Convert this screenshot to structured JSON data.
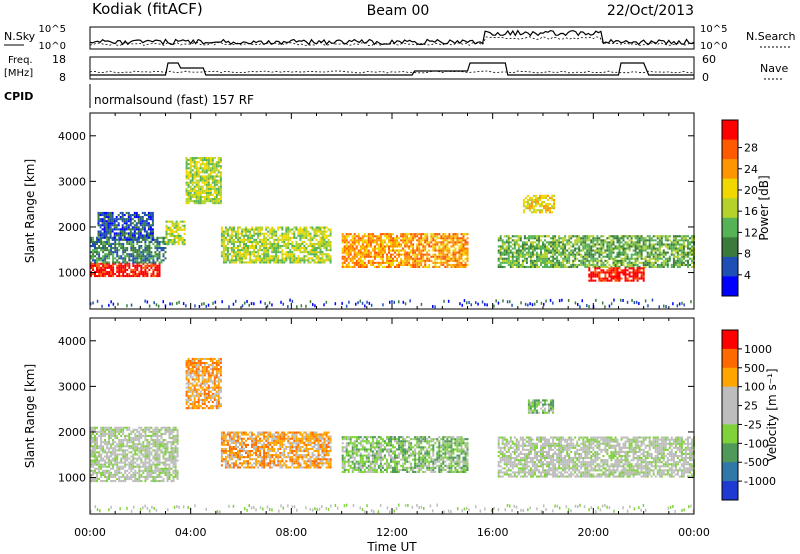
{
  "header": {
    "station": "Kodiak (fitACF)",
    "beam": "Beam 00",
    "date": "22/Oct/2013",
    "mode": "normalsound (fast) 157 RF"
  },
  "aux_panels": {
    "nsky_label": "N.Sky",
    "nsearch_label": "N.Search",
    "freq_label_1": "Freq.",
    "freq_label_2": "[MHz]",
    "nave_label": "Nave",
    "cpid_label": "CPID",
    "noise_ticks": [
      "10^5",
      "10^0"
    ],
    "freq_ticks": [
      "18",
      "8"
    ],
    "nave_ticks": [
      "60",
      "0"
    ]
  },
  "colors": {
    "power_scale": [
      "#0000ff",
      "#1f4fb4",
      "#3a7a3a",
      "#55b255",
      "#b4d22a",
      "#f0d800",
      "#ff9600",
      "#ff5a00",
      "#ff0000"
    ],
    "velocity_scale": [
      "#1f3ad2",
      "#2f78a8",
      "#4f9a5a",
      "#7fd23a",
      "#bdbdbd",
      "#bdbdbd",
      "#ffa500",
      "#ff6a00",
      "#ff0000"
    ]
  },
  "chart_data": [
    {
      "type": "heatmap",
      "name": "power",
      "xlabel": "Time UT",
      "ylabel": "Slant Range [km]",
      "xlim": [
        0,
        24
      ],
      "ylim": [
        200,
        4500
      ],
      "x_ticks": [
        "00:00",
        "04:00",
        "08:00",
        "12:00",
        "16:00",
        "20:00",
        "00:00"
      ],
      "y_ticks": [
        1000,
        2000,
        3000,
        4000
      ],
      "colorbar_label": "Power [dB]",
      "colorbar_ticks": [
        "4",
        "8",
        "12",
        "16",
        "20",
        "24",
        "28"
      ],
      "regions": [
        {
          "t0": 0.0,
          "t1": 2.8,
          "r0": 900,
          "r1": 1200,
          "level": 8
        },
        {
          "t0": 0.0,
          "t1": 3.0,
          "r0": 1200,
          "r1": 1750,
          "level": 2
        },
        {
          "t0": 0.3,
          "t1": 2.5,
          "r0": 1700,
          "r1": 2300,
          "level": 1
        },
        {
          "t0": 3.0,
          "t1": 3.8,
          "r0": 1600,
          "r1": 2100,
          "level": 4
        },
        {
          "t0": 3.8,
          "t1": 5.2,
          "r0": 2500,
          "r1": 3500,
          "level": 4
        },
        {
          "t0": 5.2,
          "t1": 9.6,
          "r0": 1200,
          "r1": 2000,
          "level": 4
        },
        {
          "t0": 10.0,
          "t1": 15.0,
          "r0": 1100,
          "r1": 1850,
          "level": 6
        },
        {
          "t0": 17.2,
          "t1": 18.4,
          "r0": 2300,
          "r1": 2700,
          "level": 5
        },
        {
          "t0": 16.2,
          "t1": 24.0,
          "r0": 1100,
          "r1": 1800,
          "level": 3
        },
        {
          "t0": 19.8,
          "t1": 22.0,
          "r0": 800,
          "r1": 1100,
          "level": 8
        }
      ]
    },
    {
      "type": "heatmap",
      "name": "velocity",
      "xlabel": "Time UT",
      "ylabel": "Slant Range [km]",
      "xlim": [
        0,
        24
      ],
      "ylim": [
        200,
        4500
      ],
      "x_ticks": [
        "00:00",
        "04:00",
        "08:00",
        "12:00",
        "16:00",
        "20:00",
        "00:00"
      ],
      "y_ticks": [
        1000,
        2000,
        3000,
        4000
      ],
      "colorbar_label": "Velocity [m s⁻¹]",
      "colorbar_ticks": [
        "1000",
        "500",
        "100",
        "25",
        "-25",
        "-100",
        "-500",
        "-1000"
      ],
      "regions": [
        {
          "t0": 0.0,
          "t1": 3.5,
          "r0": 900,
          "r1": 2100,
          "level": 4
        },
        {
          "t0": 3.8,
          "t1": 5.2,
          "r0": 2500,
          "r1": 3600,
          "level": 6
        },
        {
          "t0": 5.2,
          "t1": 9.6,
          "r0": 1200,
          "r1": 2000,
          "level": 6
        },
        {
          "t0": 10.0,
          "t1": 15.0,
          "r0": 1100,
          "r1": 1900,
          "level": 3
        },
        {
          "t0": 16.2,
          "t1": 24.0,
          "r0": 1000,
          "r1": 1900,
          "level": 4
        },
        {
          "t0": 17.4,
          "t1": 18.4,
          "r0": 2400,
          "r1": 2700,
          "level": 3
        }
      ]
    }
  ]
}
